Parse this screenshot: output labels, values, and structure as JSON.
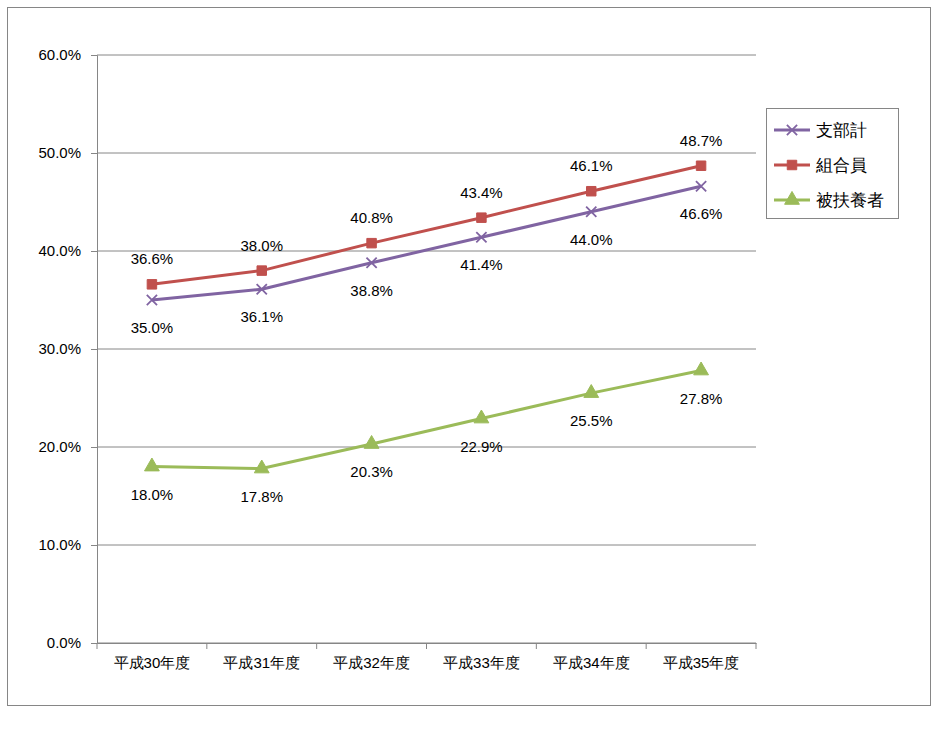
{
  "chart_data": {
    "type": "line",
    "categories": [
      "平成30年度",
      "平成31年度",
      "平成32年度",
      "平成33年度",
      "平成34年度",
      "平成35年度"
    ],
    "series": [
      {
        "name": "支部計",
        "color": "#8064a2",
        "marker": "x",
        "line_style": "solid",
        "values": [
          35.0,
          36.1,
          38.8,
          41.4,
          44.0,
          46.6
        ],
        "value_labels": [
          "35.0%",
          "36.1%",
          "38.8%",
          "41.4%",
          "44.0%",
          "46.6%"
        ]
      },
      {
        "name": "組合員",
        "color": "#c0504d",
        "marker": "square",
        "line_style": "solid",
        "values": [
          36.6,
          38.0,
          40.8,
          43.4,
          46.1,
          48.7
        ],
        "value_labels": [
          "36.6%",
          "38.0%",
          "40.8%",
          "43.4%",
          "46.1%",
          "48.7%"
        ]
      },
      {
        "name": "被扶養者",
        "color": "#9bbb59",
        "marker": "triangle",
        "line_style": "solid",
        "values": [
          18.0,
          17.8,
          20.3,
          22.9,
          25.5,
          27.8
        ],
        "value_labels": [
          "18.0%",
          "17.8%",
          "20.3%",
          "22.9%",
          "25.5%",
          "27.8%"
        ]
      }
    ],
    "ylim": [
      0,
      60
    ],
    "yticks": [
      {
        "value": 0,
        "label": "0.0%"
      },
      {
        "value": 10,
        "label": "10.0%"
      },
      {
        "value": 20,
        "label": "20.0%"
      },
      {
        "value": 30,
        "label": "30.0%"
      },
      {
        "value": 40,
        "label": "40.0%"
      },
      {
        "value": 50,
        "label": "50.0%"
      },
      {
        "value": 60,
        "label": "60.0%"
      }
    ],
    "grid": true,
    "legend": "right",
    "data_labels": true
  }
}
